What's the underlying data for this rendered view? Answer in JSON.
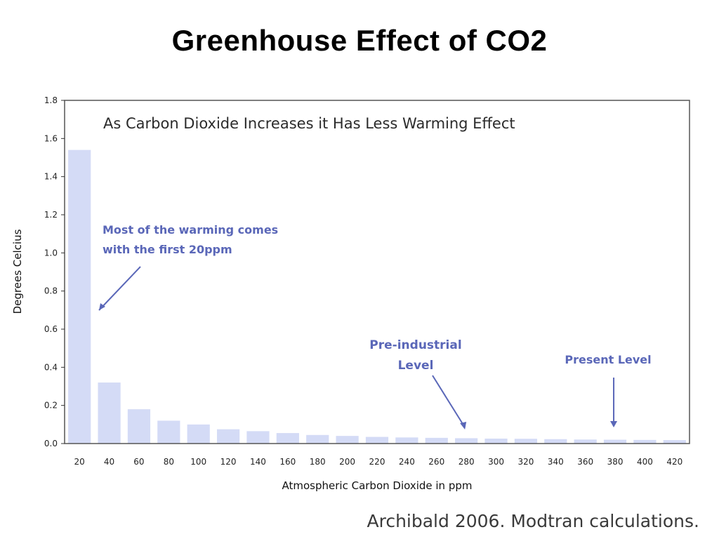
{
  "slide": {
    "title": "Greenhouse Effect of CO2",
    "caption": "Archibald 2006. Modtran calculations."
  },
  "colors": {
    "bar_fill": "#d4dbf6",
    "annotation": "#5a67b8",
    "axis": "#333333",
    "plot_border": "#555555"
  },
  "chart_data": {
    "type": "bar",
    "title": "As Carbon Dioxide Increases it Has Less Warming Effect",
    "xlabel": "Atmospheric Carbon Dioxide in ppm",
    "ylabel": "Degrees Celcius",
    "ylim": [
      0,
      1.8
    ],
    "yticks": [
      "0.0",
      "0.2",
      "0.4",
      "0.6",
      "0.8",
      "1.0",
      "1.2",
      "1.4",
      "1.6",
      "1.8"
    ],
    "categories": [
      "20",
      "40",
      "60",
      "80",
      "100",
      "120",
      "140",
      "160",
      "180",
      "200",
      "220",
      "240",
      "260",
      "280",
      "300",
      "320",
      "340",
      "360",
      "380",
      "400",
      "420"
    ],
    "values": [
      1.54,
      0.32,
      0.18,
      0.12,
      0.1,
      0.075,
      0.065,
      0.055,
      0.045,
      0.04,
      0.035,
      0.032,
      0.03,
      0.028,
      0.026,
      0.025,
      0.023,
      0.021,
      0.02,
      0.019,
      0.018
    ],
    "grid": false,
    "annotations": [
      {
        "lines": [
          "Most of the warming comes",
          "with the first 20ppm"
        ],
        "target": "20"
      },
      {
        "lines": [
          "Pre-industrial",
          "Level"
        ],
        "target": "280"
      },
      {
        "lines": [
          "Present Level"
        ],
        "target": "380"
      }
    ]
  }
}
